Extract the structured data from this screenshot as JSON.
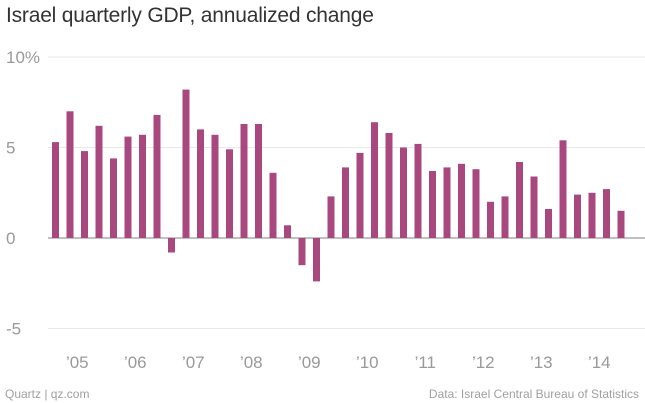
{
  "header": {
    "title": "Israel quarterly GDP, annualized change"
  },
  "footer": {
    "source_left": "Quartz | qz.com",
    "source_right": "Data: Israel Central Bureau of Statistics"
  },
  "colors": {
    "bar": "#a9477f",
    "grid": "#e8e8e8",
    "zero_line": "#9a9a9a",
    "text": "#333333",
    "muted": "#a0a0a0"
  },
  "chart_data": {
    "type": "bar",
    "title": "Israel quarterly GDP, annualized change",
    "xlabel": "",
    "ylabel": "",
    "ylim": [
      -5,
      10
    ],
    "y_ticks": [
      "10%",
      "5",
      "0",
      "-5"
    ],
    "y_tick_values": [
      10,
      5,
      0,
      -5
    ],
    "x_tick_labels": [
      "’05",
      "’06",
      "’07",
      "’08",
      "’09",
      "’10",
      "’11",
      "’12",
      "’13",
      "’14"
    ],
    "grid": true,
    "categories": [
      "2005 Q1",
      "2005 Q2",
      "2005 Q3",
      "2005 Q4",
      "2006 Q1",
      "2006 Q2",
      "2006 Q3",
      "2006 Q4",
      "2007 Q1",
      "2007 Q2",
      "2007 Q3",
      "2007 Q4",
      "2008 Q1",
      "2008 Q2",
      "2008 Q3",
      "2008 Q4",
      "2009 Q1",
      "2009 Q2",
      "2009 Q3",
      "2009 Q4",
      "2010 Q1",
      "2010 Q2",
      "2010 Q3",
      "2010 Q4",
      "2011 Q1",
      "2011 Q2",
      "2011 Q3",
      "2011 Q4",
      "2012 Q1",
      "2012 Q2",
      "2012 Q3",
      "2012 Q4",
      "2013 Q1",
      "2013 Q2",
      "2013 Q3",
      "2013 Q4",
      "2014 Q1",
      "2014 Q2",
      "2014 Q3",
      "2014 Q4"
    ],
    "values": [
      5.3,
      7.0,
      4.8,
      6.2,
      4.4,
      5.6,
      5.7,
      6.8,
      -0.8,
      8.2,
      6.0,
      5.7,
      4.9,
      6.3,
      6.3,
      3.6,
      0.7,
      -1.5,
      -2.4,
      2.3,
      3.9,
      4.7,
      6.4,
      5.8,
      5.0,
      5.2,
      3.7,
      3.9,
      4.1,
      3.8,
      2.0,
      2.3,
      4.2,
      3.4,
      1.6,
      5.4,
      2.4,
      2.5,
      2.7,
      1.5
    ]
  }
}
